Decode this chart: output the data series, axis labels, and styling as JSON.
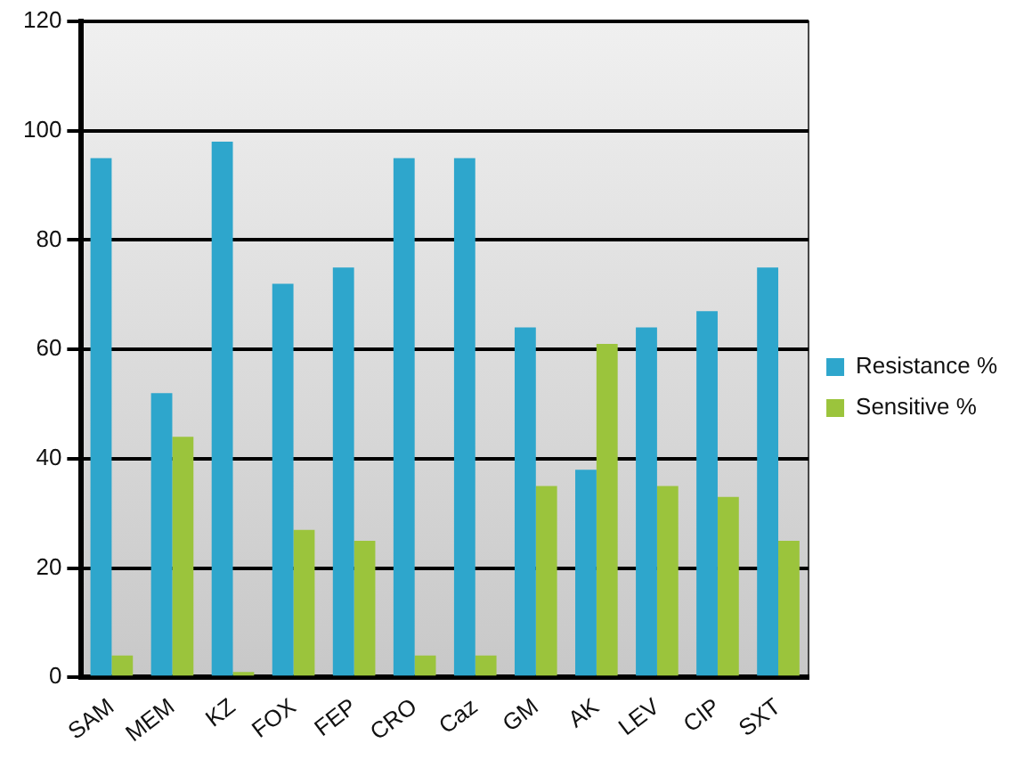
{
  "chart_data": {
    "type": "bar",
    "categories": [
      "SAM",
      "MEM",
      "KZ",
      "FOX",
      "FEP",
      "CRO",
      "Caz",
      "GM",
      "AK",
      "LEV",
      "CIP",
      "SXT"
    ],
    "series": [
      {
        "name": "Resistance %",
        "color": "#2ea6cc",
        "values": [
          95,
          52,
          98,
          72,
          75,
          95,
          95,
          64,
          38,
          64,
          67,
          75
        ]
      },
      {
        "name": "Sensitive %",
        "color": "#9bc43c",
        "values": [
          4,
          44,
          1,
          27,
          25,
          4,
          4,
          35,
          61,
          35,
          33,
          25
        ]
      }
    ],
    "ylim": [
      0,
      120
    ],
    "yticks": [
      0,
      20,
      40,
      60,
      80,
      100,
      120
    ],
    "grid": "y",
    "legend": "right"
  }
}
